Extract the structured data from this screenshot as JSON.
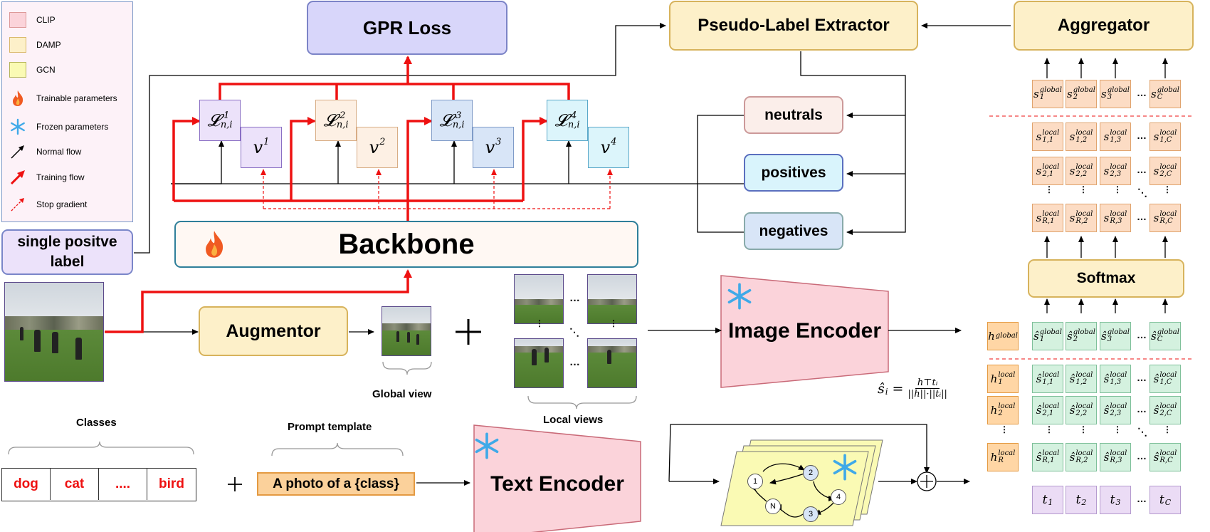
{
  "legend": {
    "clip": "CLIP",
    "damp": "DAMP",
    "gcn": "GCN",
    "trainable": "Trainable parameters",
    "frozen": "Frozen parameters",
    "normal_flow": "Normal flow",
    "training_flow": "Training flow",
    "stop_gradient": "Stop gradient"
  },
  "boxes": {
    "gpr_loss": "GPR Loss",
    "pseudo_label_extractor": "Pseudo-Label Extractor",
    "aggregator": "Aggregator",
    "neutrals": "neutrals",
    "positives": "positives",
    "negatives": "negatives",
    "single_positive_label": "single positve label",
    "backbone": "Backbone",
    "augmentor": "Augmentor",
    "image_encoder": "Image Encoder",
    "text_encoder": "Text Encoder",
    "softmax": "Softmax",
    "prompt_template": "A photo of a {class}"
  },
  "labels": {
    "global_view": "Global view",
    "local_views": "Local views",
    "classes": "Classes",
    "prompt_template": "Prompt template"
  },
  "classes": [
    "dog",
    "cat",
    "....",
    "bird"
  ],
  "losses": [
    "1",
    "2",
    "3",
    "4"
  ],
  "gcn_nodes": [
    "1",
    "2",
    "4",
    "3",
    "N"
  ],
  "formula": {
    "lhs": "ŝ",
    "lhs_sub": "i",
    "num": "h⊤tᵢ",
    "den": "||h||·||tᵢ||"
  },
  "score_cols": [
    "1",
    "2",
    "3",
    "C"
  ],
  "local_rows": [
    "1",
    "2",
    "R"
  ],
  "colors": {
    "clip": "#fbd3da",
    "damp": "#fdf0c9",
    "gcn": "#fafab4",
    "gpr": "#d8d6fa",
    "red": "#ee1111",
    "neutrals": "#fbeeea",
    "positives": "#d9f4fc",
    "negatives": "#d8e5f7"
  }
}
